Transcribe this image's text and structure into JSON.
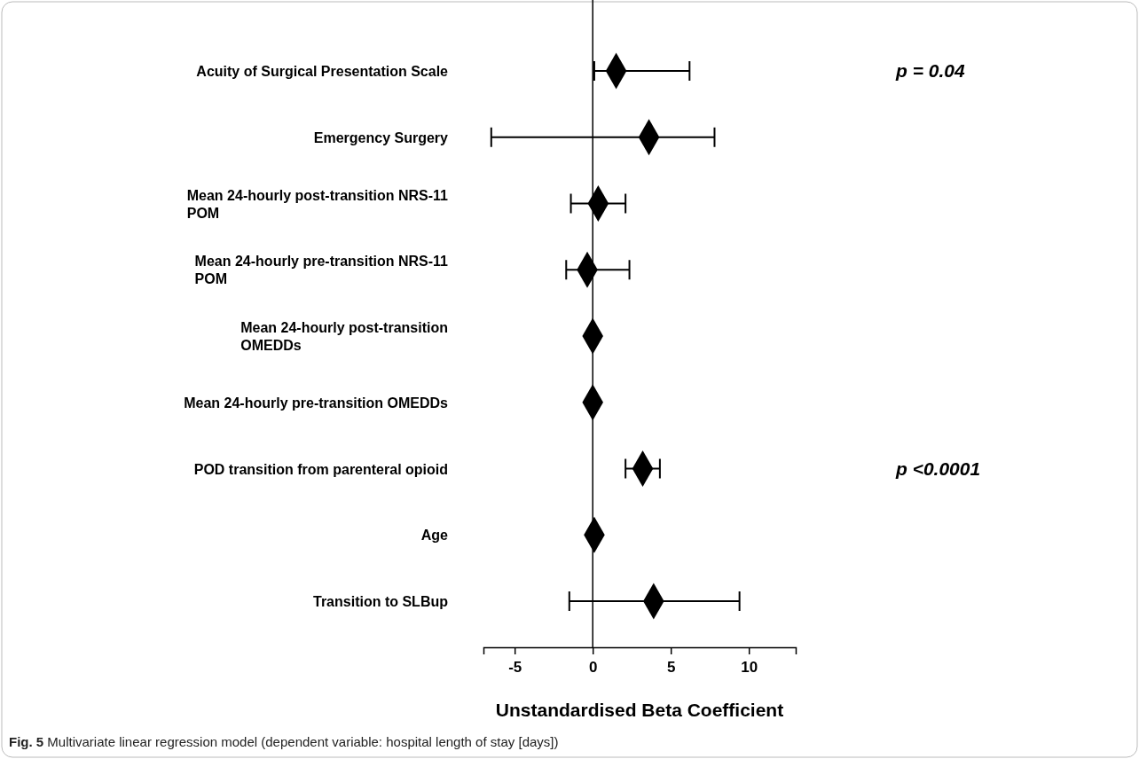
{
  "chart_data": {
    "type": "scatter",
    "orientation": "horizontal",
    "marker": "diamond",
    "categories": [
      "Acuity of Surgical Presentation Scale",
      "Emergency Surgery",
      "Mean 24-hourly post-transition NRS-11 POM",
      "Mean 24-hourly pre-transition NRS-11 POM",
      "Mean 24-hourly post-transition OMEDDs",
      "Mean 24-hourly pre-transition OMEDDs",
      "POD transition from parenteral opioid",
      "Age",
      "Transition to SLBup"
    ],
    "series": [
      {
        "color": "#000000",
        "values": [
          1.5,
          3.6,
          0.35,
          -0.35,
          0,
          0,
          3.2,
          0.1,
          3.9
        ],
        "errors": [
          [
            0.1,
            6.2
          ],
          [
            -6.5,
            7.8
          ],
          [
            -1.4,
            2.1
          ],
          [
            -1.7,
            2.35
          ],
          null,
          null,
          [
            2.1,
            4.3
          ],
          null,
          [
            -1.5,
            9.4
          ]
        ]
      }
    ],
    "xlim": [
      -7,
      13
    ],
    "xticks": [
      -5,
      0,
      5,
      10
    ],
    "xlabel": "Unstandardised Beta Coefficient",
    "ref_lines": [
      {
        "axis": "x",
        "value": 0,
        "color": "#000000"
      }
    ],
    "annotations": [
      "p = 0.04",
      "p <0.0001",
      "Fig. 5  Multivariate linear regression model (dependent variable: hospital length of stay [days])"
    ],
    "grid": false
  }
}
